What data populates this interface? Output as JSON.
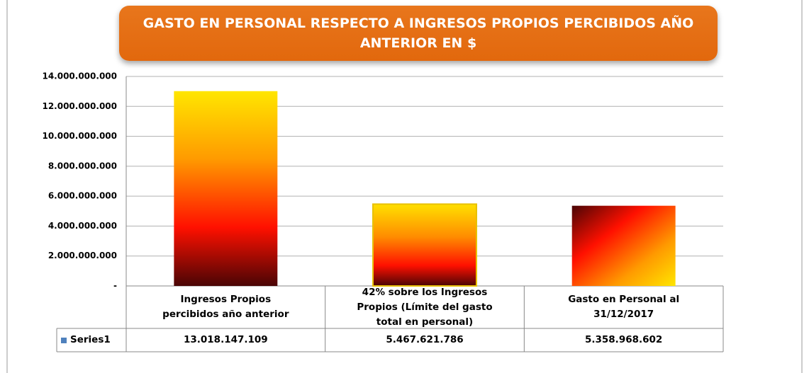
{
  "chart_data": {
    "type": "bar",
    "title": "GASTO EN PERSONAL RESPECTO A  INGRESOS PROPIOS PERCIBIDOS AÑO ANTERIOR EN $",
    "categories": [
      "Ingresos Propios percibidos año anterior",
      "42% sobre los Ingresos Propios (Límite del gasto total en personal)",
      "Gasto en Personal al 31/12/2017"
    ],
    "series": [
      {
        "name": "Series1",
        "color": "#4f81bd",
        "values": [
          13018147109,
          5467621786,
          5358968602
        ],
        "value_labels": [
          "13.018.147.109",
          "5.467.621.786",
          "5.358.968.602"
        ]
      }
    ],
    "ylim": [
      0,
      14000000000
    ],
    "yticks": [
      {
        "value": 0,
        "label": "-"
      },
      {
        "value": 2000000000,
        "label": "2.000.000.000"
      },
      {
        "value": 4000000000,
        "label": "4.000.000.000"
      },
      {
        "value": 6000000000,
        "label": "6.000.000.000"
      },
      {
        "value": 8000000000,
        "label": "8.000.000.000"
      },
      {
        "value": 10000000000,
        "label": "10.000.000.000"
      },
      {
        "value": 12000000000,
        "label": "12.000.000.000"
      },
      {
        "value": 14000000000,
        "label": "14.000.000.000"
      }
    ],
    "grid": true
  }
}
